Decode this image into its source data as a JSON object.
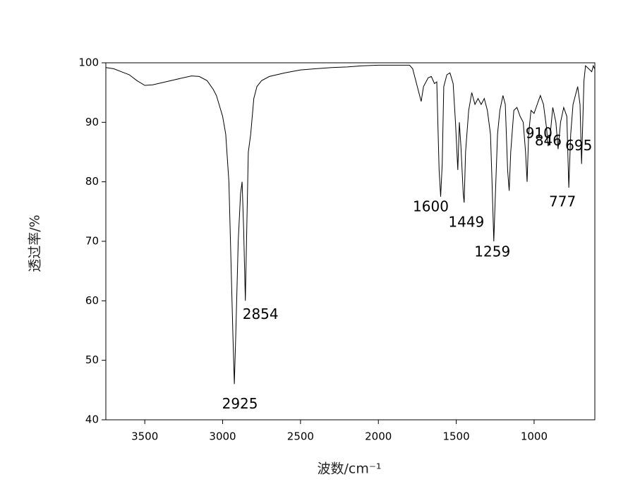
{
  "chart_data": {
    "type": "line",
    "xlabel": "波数/cm⁻¹",
    "ylabel": "透过率/%",
    "xlim": [
      3750,
      610
    ],
    "ylim": [
      40,
      100
    ],
    "xticks": [
      3500,
      3000,
      2500,
      2000,
      1500,
      1000
    ],
    "yticks": [
      40,
      50,
      60,
      70,
      80,
      90,
      100
    ],
    "color": "#000000",
    "x": [
      3750,
      3700,
      3650,
      3600,
      3550,
      3500,
      3450,
      3400,
      3300,
      3200,
      3150,
      3100,
      3060,
      3040,
      3000,
      2980,
      2960,
      2945,
      2935,
      2925,
      2915,
      2900,
      2885,
      2875,
      2865,
      2854,
      2845,
      2835,
      2820,
      2800,
      2780,
      2750,
      2700,
      2600,
      2500,
      2400,
      2300,
      2200,
      2100,
      2000,
      1900,
      1800,
      1780,
      1760,
      1740,
      1725,
      1710,
      1680,
      1660,
      1640,
      1625,
      1610,
      1600,
      1590,
      1580,
      1560,
      1540,
      1520,
      1505,
      1490,
      1480,
      1470,
      1455,
      1449,
      1440,
      1420,
      1400,
      1380,
      1360,
      1340,
      1320,
      1300,
      1280,
      1270,
      1259,
      1250,
      1235,
      1220,
      1200,
      1185,
      1170,
      1160,
      1150,
      1130,
      1110,
      1090,
      1070,
      1055,
      1045,
      1035,
      1020,
      1000,
      980,
      960,
      940,
      920,
      910,
      900,
      880,
      860,
      846,
      830,
      810,
      790,
      777,
      765,
      750,
      740,
      720,
      705,
      695,
      680,
      670,
      650,
      630,
      620,
      612
    ],
    "values": [
      99.2,
      99,
      98.5,
      98,
      97,
      96.2,
      96.3,
      96.6,
      97.2,
      97.8,
      97.7,
      97,
      95.5,
      94.5,
      91,
      88,
      80,
      65,
      55,
      46,
      55,
      70,
      78,
      80,
      72,
      60,
      72,
      85,
      88,
      94,
      96,
      97,
      97.7,
      98.3,
      98.8,
      99,
      99.2,
      99.3,
      99.5,
      99.6,
      99.6,
      99.6,
      99,
      97,
      95,
      93.5,
      96,
      97.5,
      97.7,
      96.5,
      96.8,
      82,
      77.5,
      83,
      96,
      98,
      98.3,
      96.5,
      90,
      82,
      90,
      86,
      78,
      76.5,
      85,
      92,
      95,
      93,
      94,
      93,
      94,
      92,
      88,
      80,
      70,
      77,
      88,
      92,
      94.5,
      93,
      82,
      78.5,
      85,
      92,
      92.5,
      91,
      90,
      85,
      80,
      88,
      92,
      91.5,
      93,
      94.5,
      93,
      89,
      86,
      87,
      92.5,
      90,
      85.5,
      90,
      92.5,
      91,
      79,
      88,
      93,
      94,
      96,
      93,
      83,
      97,
      99.5,
      99,
      98.5,
      99.5,
      99
    ],
    "annotations": [
      {
        "text": "2925",
        "x": 2925,
        "y": 46
      },
      {
        "text": "2854",
        "x": 2854,
        "y": 60
      },
      {
        "text": "1600",
        "x": 1600,
        "y": 77.5
      },
      {
        "text": "1449",
        "x": 1449,
        "y": 76.5
      },
      {
        "text": "1259",
        "x": 1259,
        "y": 70
      },
      {
        "text": "910",
        "x": 910,
        "y": 86
      },
      {
        "text": "846",
        "x": 846,
        "y": 85.5
      },
      {
        "text": "777",
        "x": 777,
        "y": 79
      },
      {
        "text": "695",
        "x": 695,
        "y": 83
      }
    ]
  }
}
